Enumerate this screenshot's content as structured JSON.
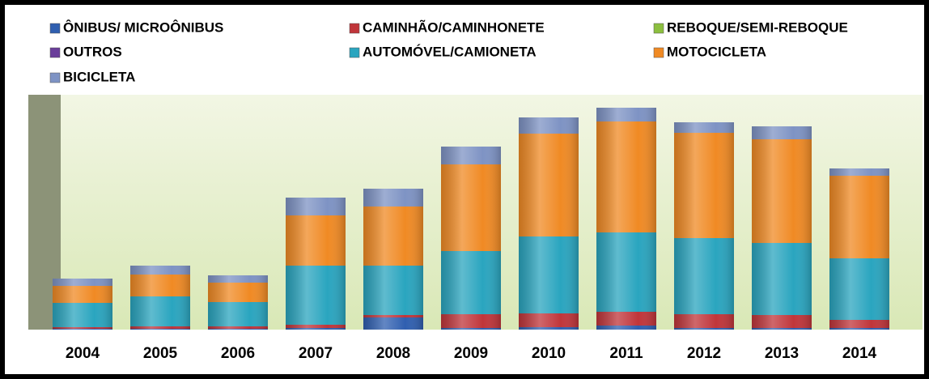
{
  "chart_data": {
    "type": "stacked_bar",
    "categories": [
      "2004",
      "2005",
      "2006",
      "2007",
      "2008",
      "2009",
      "2010",
      "2011",
      "2012",
      "2013",
      "2014"
    ],
    "series": [
      {
        "name": "ÔNIBUS/ MICROÔNIBUS",
        "color": "#2f5fb0",
        "values": [
          1,
          1,
          1,
          2,
          15,
          2,
          3,
          5,
          2,
          2,
          2
        ]
      },
      {
        "name": "CAMINHÃO/CAMINHONETE",
        "color": "#c0353a",
        "values": [
          2,
          3,
          3,
          4,
          3,
          17,
          17,
          17,
          17,
          16,
          10
        ]
      },
      {
        "name": "REBOQUE/SEMI-REBOQUE",
        "color": "#8cbf3f",
        "values": [
          0,
          0,
          0,
          0,
          0,
          0,
          0,
          0,
          0,
          0,
          0
        ]
      },
      {
        "name": "OUTROS",
        "color": "#6a3d9a",
        "values": [
          0,
          0,
          0,
          0,
          0,
          0,
          0,
          0,
          0,
          0,
          0
        ]
      },
      {
        "name": "AUTOMÓVEL/CAMIONETA",
        "color": "#2aa5bf",
        "values": [
          30,
          37,
          30,
          73,
          61,
          78,
          95,
          98,
          94,
          89,
          76
        ]
      },
      {
        "name": "MOTOCICLETA",
        "color": "#f08a24",
        "values": [
          21,
          27,
          24,
          62,
          73,
          107,
          127,
          137,
          130,
          128,
          102
        ]
      },
      {
        "name": "BICICLETA",
        "color": "#7e93c4",
        "values": [
          9,
          11,
          9,
          22,
          22,
          22,
          20,
          17,
          13,
          16,
          9
        ]
      }
    ],
    "ylim": [
      0,
      290
    ],
    "legend": "top"
  }
}
